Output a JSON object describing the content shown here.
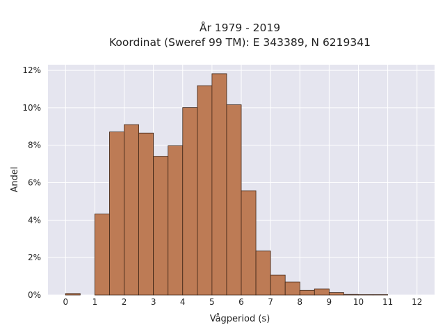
{
  "chart_data": {
    "type": "bar",
    "title_line1": "År 1979 - 2019",
    "title_line2": "Koordinat (Sweref 99 TM): E 343389, N 6219341",
    "xlabel": "Vågperiod (s)",
    "ylabel": "Andel",
    "xlim": [
      -0.6,
      12.6
    ],
    "ylim": [
      0,
      0.123
    ],
    "x_ticks": [
      0,
      1,
      2,
      3,
      4,
      5,
      6,
      7,
      8,
      9,
      10,
      11,
      12
    ],
    "y_ticks": [
      {
        "value": 0,
        "label": "0%"
      },
      {
        "value": 0.02,
        "label": "2%"
      },
      {
        "value": 0.04,
        "label": "4%"
      },
      {
        "value": 0.06,
        "label": "6%"
      },
      {
        "value": 0.08,
        "label": "8%"
      },
      {
        "value": 0.1,
        "label": "10%"
      },
      {
        "value": 0.12,
        "label": "12%"
      }
    ],
    "bin_width": 0.5,
    "bins": [
      {
        "x0": 0.0,
        "value": 0.0008
      },
      {
        "x0": 0.5,
        "value": 0.0
      },
      {
        "x0": 1.0,
        "value": 0.0433
      },
      {
        "x0": 1.5,
        "value": 0.0871
      },
      {
        "x0": 2.0,
        "value": 0.091
      },
      {
        "x0": 2.5,
        "value": 0.0865
      },
      {
        "x0": 3.0,
        "value": 0.0741
      },
      {
        "x0": 3.5,
        "value": 0.0797
      },
      {
        "x0": 4.0,
        "value": 0.1001
      },
      {
        "x0": 4.5,
        "value": 0.1118
      },
      {
        "x0": 5.0,
        "value": 0.1182
      },
      {
        "x0": 5.5,
        "value": 0.1016
      },
      {
        "x0": 6.0,
        "value": 0.0557
      },
      {
        "x0": 6.5,
        "value": 0.0235
      },
      {
        "x0": 7.0,
        "value": 0.0107
      },
      {
        "x0": 7.5,
        "value": 0.007
      },
      {
        "x0": 8.0,
        "value": 0.0025
      },
      {
        "x0": 8.5,
        "value": 0.0033
      },
      {
        "x0": 9.0,
        "value": 0.0013
      },
      {
        "x0": 9.5,
        "value": 0.0003
      },
      {
        "x0": 10.0,
        "value": 0.0002
      },
      {
        "x0": 10.5,
        "value": 0.0002
      }
    ],
    "grid": true,
    "colors": {
      "plot_background": "#e5e5ef",
      "grid": "#ffffff",
      "bar_fill": "#bd7b55",
      "bar_edge": "#3d2416",
      "text": "#222222"
    }
  }
}
